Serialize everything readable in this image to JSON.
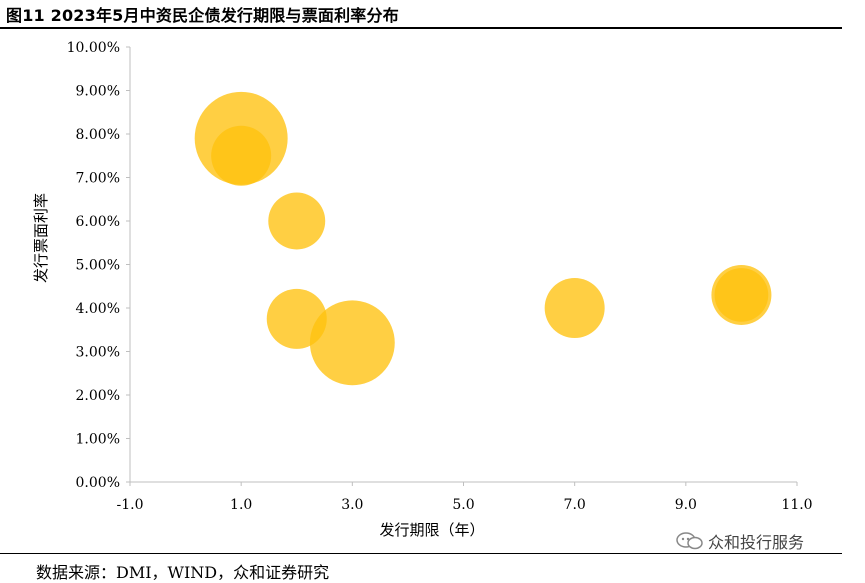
{
  "figure": {
    "title": "图11 2023年5月中资民企债发行期限与票面利率分布",
    "source": "数据来源：DMI，WIND，众和证券研究",
    "watermark": "众和投行服务"
  },
  "colors": {
    "bubble": "#FFC20E",
    "axis": "#BFBFBF"
  },
  "chart_data": {
    "type": "scatter",
    "title": "",
    "xlabel": "发行期限（年）",
    "ylabel": "发行票面利率",
    "xlim": [
      -1.0,
      11.0
    ],
    "ylim": [
      0.0,
      10.0
    ],
    "x_ticks": [
      -1.0,
      1.0,
      3.0,
      5.0,
      7.0,
      9.0,
      11.0
    ],
    "x_tick_labels": [
      "-1.0",
      "1.0",
      "3.0",
      "5.0",
      "7.0",
      "9.0",
      "11.0"
    ],
    "y_ticks": [
      0,
      1,
      2,
      3,
      4,
      5,
      6,
      7,
      8,
      9,
      10
    ],
    "y_tick_labels": [
      "0.00%",
      "1.00%",
      "2.00%",
      "3.00%",
      "4.00%",
      "5.00%",
      "6.00%",
      "7.00%",
      "8.00%",
      "9.00%",
      "10.00%"
    ],
    "grid": false,
    "bubble_size_unit": "relative",
    "points": [
      {
        "x": 1.0,
        "y": 7.9,
        "size": 2.4
      },
      {
        "x": 1.0,
        "y": 7.5,
        "size": 1.0
      },
      {
        "x": 2.0,
        "y": 6.0,
        "size": 0.9
      },
      {
        "x": 2.0,
        "y": 3.75,
        "size": 1.0
      },
      {
        "x": 3.0,
        "y": 3.2,
        "size": 2.0
      },
      {
        "x": 7.0,
        "y": 4.0,
        "size": 1.0
      },
      {
        "x": 10.0,
        "y": 4.3,
        "size": 1.0
      },
      {
        "x": 10.0,
        "y": 4.3,
        "size": 0.8
      }
    ]
  }
}
